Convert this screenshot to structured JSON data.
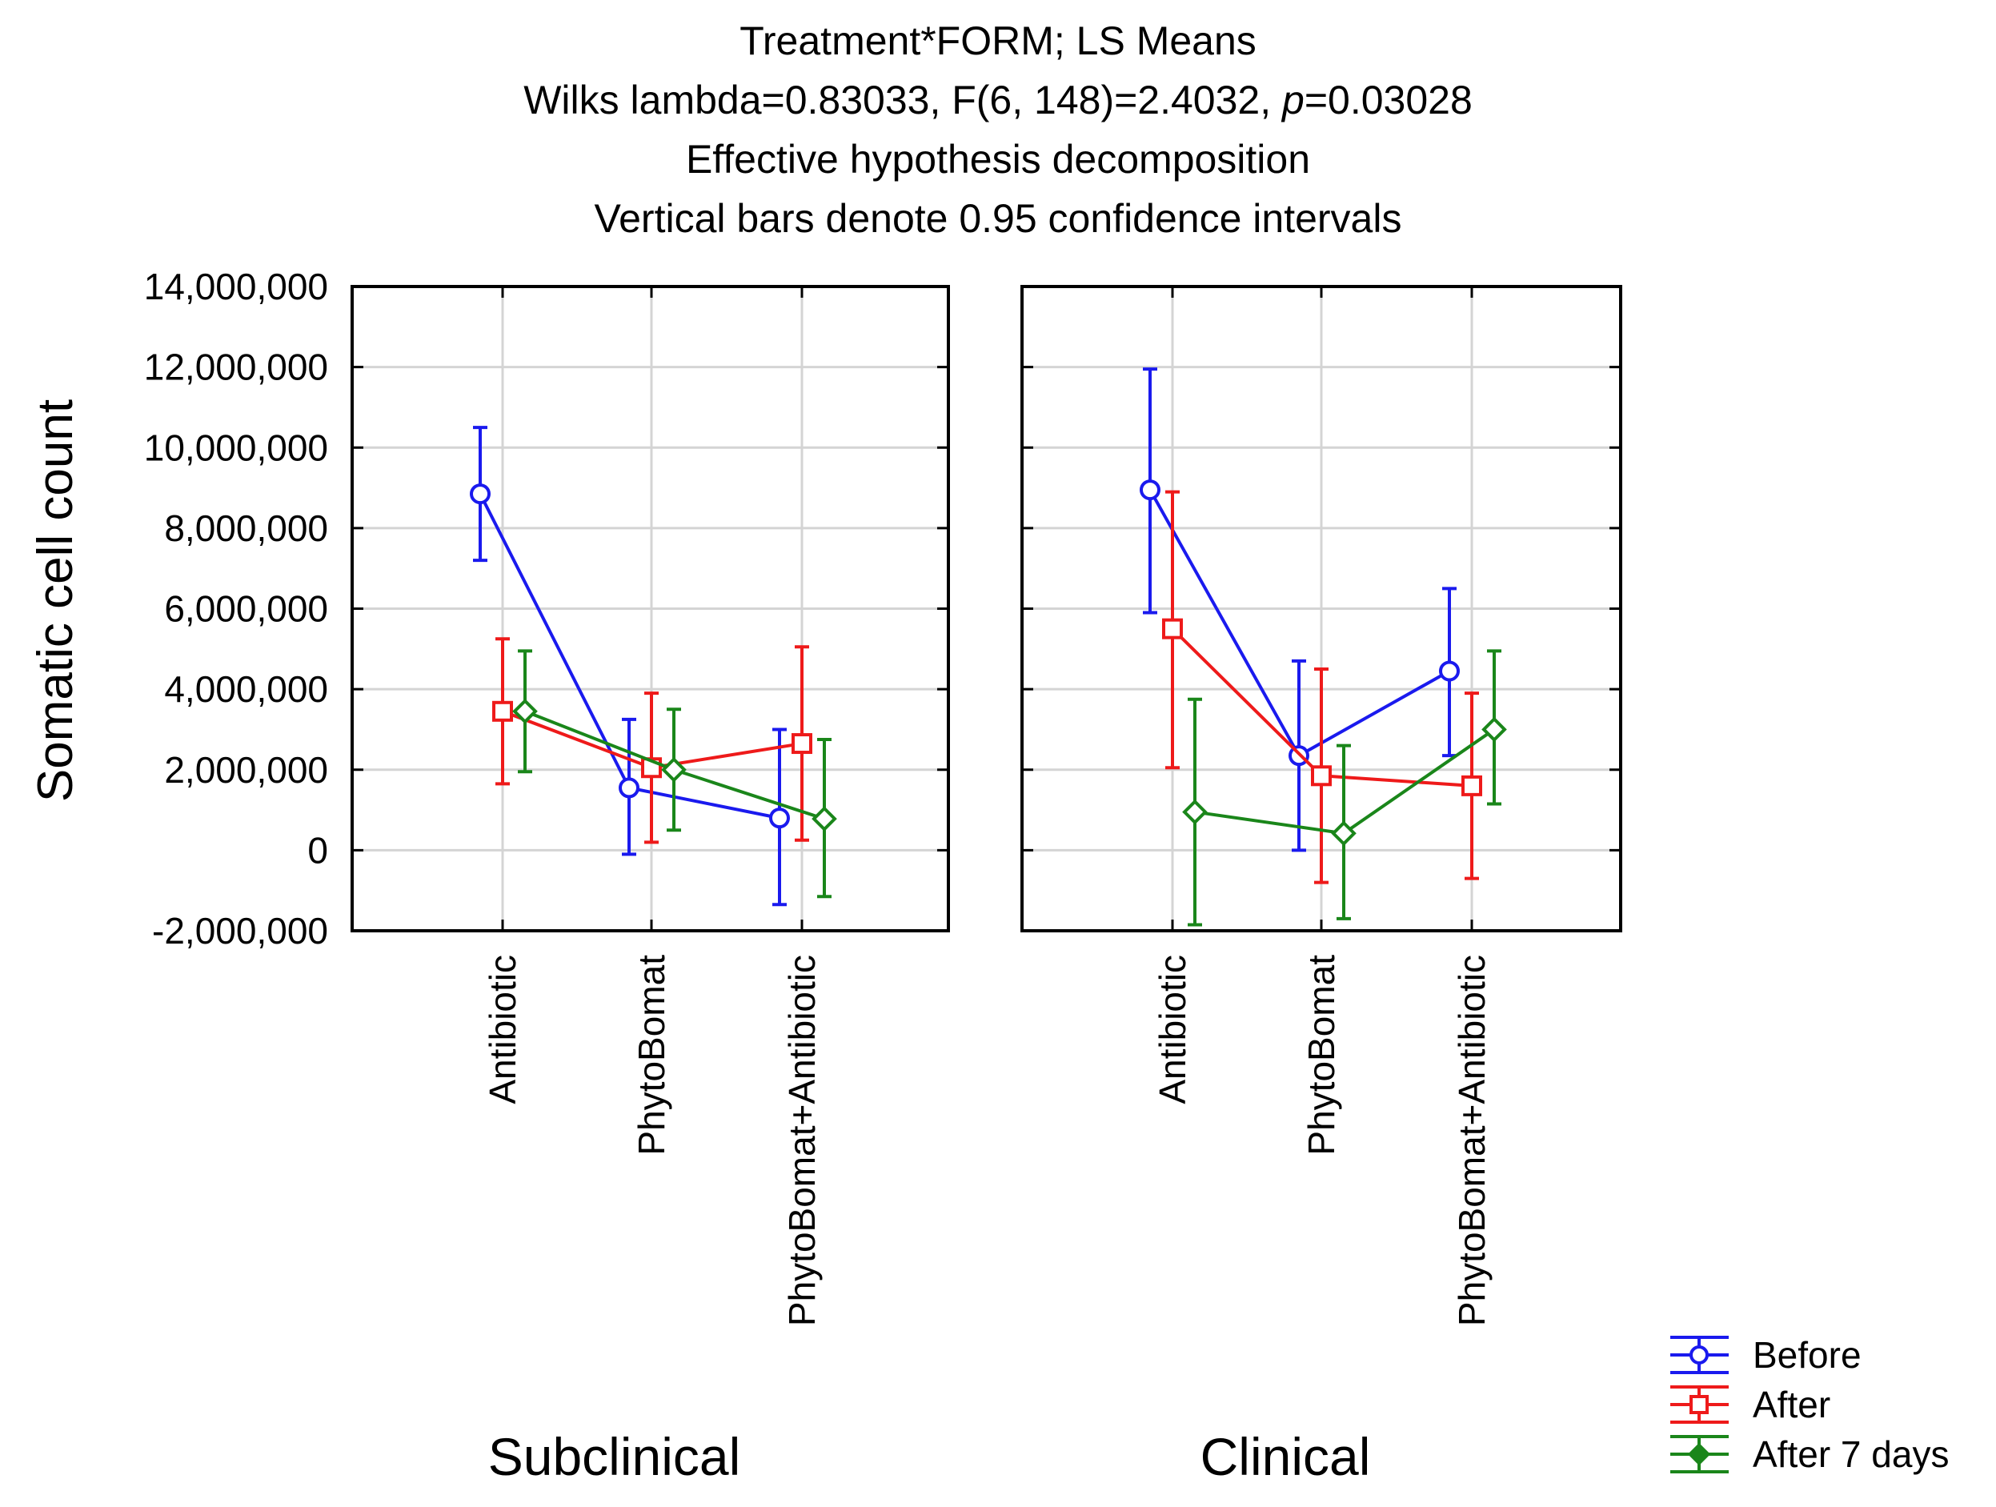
{
  "chart_data": {
    "type": "line",
    "title": "Treatment*FORM; LS Means",
    "subtitle_stats": {
      "prefix": "Wilks lambda=0.83033, F(6, 148)=2.4032, ",
      "p_symbol": "p",
      "suffix": "=0.03028"
    },
    "subtitle_2": "Effective hypothesis decomposition",
    "subtitle_3": "Vertical bars denote 0.95 confidence intervals",
    "ylabel": "Somatic cell count",
    "ylim": [
      -2000000,
      14000000
    ],
    "yticks": [
      -2000000,
      0,
      2000000,
      4000000,
      6000000,
      8000000,
      10000000,
      12000000,
      14000000
    ],
    "ytick_labels": [
      "-2,000,000",
      "0",
      "2,000,000",
      "4,000,000",
      "6,000,000",
      "8,000,000",
      "10,000,000",
      "12,000,000",
      "14,000,000"
    ],
    "categories": [
      "Antibiotic",
      "PhytoBomat",
      "PhytoBomat+Antibiotic"
    ],
    "panels": [
      {
        "label": "Subclinical",
        "series": [
          {
            "name": "Before",
            "values": [
              8850000,
              1550000,
              800000
            ],
            "lower": [
              7200000,
              -100000,
              -1350000
            ],
            "upper": [
              10500000,
              3250000,
              3000000
            ]
          },
          {
            "name": "After",
            "values": [
              3450000,
              2050000,
              2650000
            ],
            "lower": [
              1650000,
              200000,
              250000
            ],
            "upper": [
              5250000,
              3900000,
              5050000
            ]
          },
          {
            "name": "After 7 days",
            "values": [
              3450000,
              2000000,
              780000
            ],
            "lower": [
              1950000,
              500000,
              -1150000
            ],
            "upper": [
              4950000,
              3500000,
              2750000
            ]
          }
        ]
      },
      {
        "label": "Clinical",
        "series": [
          {
            "name": "Before",
            "values": [
              8950000,
              2350000,
              4450000
            ],
            "lower": [
              5900000,
              0,
              2350000
            ],
            "upper": [
              11950000,
              4700000,
              6500000
            ]
          },
          {
            "name": "After",
            "values": [
              5500000,
              1850000,
              1600000
            ],
            "lower": [
              2050000,
              -800000,
              -700000
            ],
            "upper": [
              8900000,
              4500000,
              3900000
            ]
          },
          {
            "name": "After 7 days",
            "values": [
              950000,
              420000,
              3000000
            ],
            "lower": [
              -1850000,
              -1700000,
              1150000
            ],
            "upper": [
              3750000,
              2600000,
              4950000
            ]
          }
        ]
      }
    ],
    "legend": {
      "position": "bottom-right",
      "entries": [
        "Before",
        "After",
        "After 7 days"
      ]
    },
    "colors": {
      "Before": "#1a1aee",
      "After": "#ee1a1a",
      "After 7 days": "#1a861a"
    },
    "markers": {
      "Before": "circle",
      "After": "square",
      "After 7 days": "diamond"
    },
    "grid": true
  }
}
